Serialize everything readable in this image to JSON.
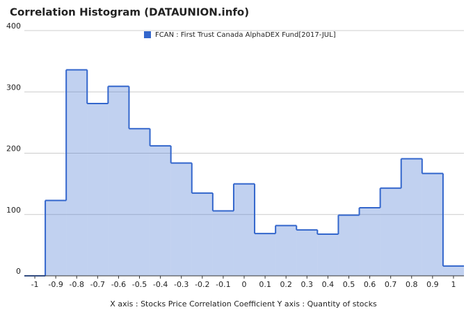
{
  "chart_data": {
    "type": "step-area",
    "title": "Correlation Histogram (DATAUNION.info)",
    "axis_caption": "X axis : Stocks Price Correlation Coefficient  Y axis : Quantity of stocks",
    "x": [
      -1,
      -0.9,
      -0.8,
      -0.7,
      -0.6,
      -0.5,
      -0.4,
      -0.3,
      -0.2,
      -0.1,
      0,
      0.1,
      0.2,
      0.3,
      0.4,
      0.5,
      0.6,
      0.7,
      0.8,
      0.9,
      1
    ],
    "series": [
      {
        "name": "FCAN : First Trust Canada AlphaDEX Fund[2017-JUL]",
        "color": "#3366cc",
        "values": [
          0,
          123,
          336,
          281,
          309,
          240,
          212,
          184,
          135,
          106,
          150,
          69,
          82,
          75,
          68,
          99,
          111,
          143,
          191,
          167,
          16
        ]
      }
    ],
    "xlim": [
      -1.05,
      1.05
    ],
    "xticks": [
      -1,
      -0.9,
      -0.8,
      -0.7,
      -0.6,
      -0.5,
      -0.4,
      -0.3,
      -0.2,
      -0.1,
      0,
      0.1,
      0.2,
      0.3,
      0.4,
      0.5,
      0.6,
      0.7,
      0.8,
      0.9,
      1
    ],
    "ylim": [
      0,
      400
    ],
    "yticks": [
      0,
      100,
      200,
      300,
      400
    ],
    "grid": true
  }
}
